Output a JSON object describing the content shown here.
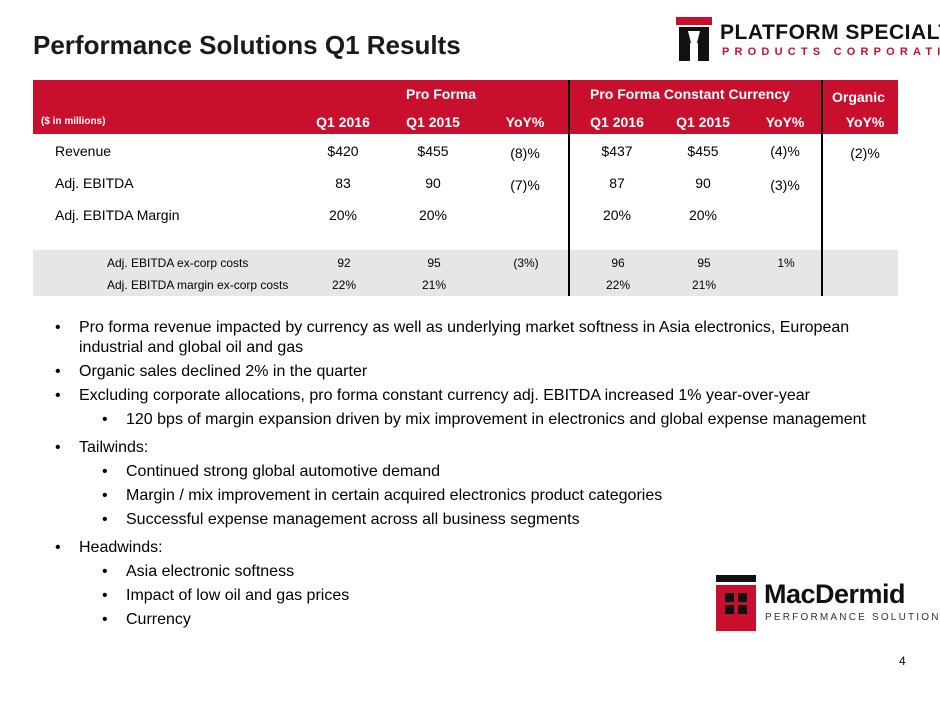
{
  "title": "Performance Solutions Q1 Results",
  "logo_top": {
    "line1": "PLATFORM SPECIALTY",
    "line2": "PRODUCTS CORPORATION",
    "color": "#c8102e"
  },
  "table": {
    "group_headers": {
      "pro_forma": "Pro Forma",
      "constant_currency": "Pro Forma Constant Currency",
      "organic": "Organic"
    },
    "unit_label": "($ in millions)",
    "columns": [
      "Q1 2016",
      "Q1 2015",
      "YoY%",
      "Q1 2016",
      "Q1 2015",
      "YoY%",
      "YoY%"
    ],
    "rows": [
      {
        "label": "Revenue",
        "values": [
          "$420",
          "$455",
          "(8)%",
          "$437",
          "$455",
          "(4)%",
          "(2)%"
        ]
      },
      {
        "label": "Adj. EBITDA",
        "values": [
          "83",
          "90",
          "(7)%",
          "87",
          "90",
          "(3)%",
          ""
        ]
      },
      {
        "label": "Adj. EBITDA Margin",
        "values": [
          "20%",
          "20%",
          "",
          "20%",
          "20%",
          "",
          ""
        ]
      }
    ],
    "sub_rows": [
      {
        "label": "Adj. EBITDA ex-corp costs",
        "values": [
          "92",
          "95",
          "(3%)",
          "96",
          "95",
          "1%",
          ""
        ]
      },
      {
        "label": "Adj. EBITDA margin ex-corp costs",
        "values": [
          "22%",
          "21%",
          "",
          "22%",
          "21%",
          "",
          ""
        ]
      }
    ],
    "header_color": "#c8102e",
    "band_color": "#e6e6e6"
  },
  "bullets": [
    {
      "level": 1,
      "text": "Pro forma revenue impacted by currency as well as underlying market softness in Asia electronics, European industrial and global oil and gas"
    },
    {
      "level": 1,
      "text": "Organic sales declined 2% in the quarter"
    },
    {
      "level": 1,
      "text": "Excluding corporate allocations, pro forma constant currency adj. EBITDA increased 1% year-over-year"
    },
    {
      "level": 2,
      "text": "120 bps of margin expansion driven by mix improvement in electronics and global expense management"
    },
    {
      "level": 1,
      "text": "Tailwinds:"
    },
    {
      "level": 2,
      "text": "Continued strong global automotive demand"
    },
    {
      "level": 2,
      "text": "Margin / mix improvement in certain acquired electronics product categories"
    },
    {
      "level": 2,
      "text": "Successful expense management across all business segments"
    },
    {
      "level": 1,
      "text": "Headwinds:"
    },
    {
      "level": 2,
      "text": "Asia electronic softness"
    },
    {
      "level": 2,
      "text": "Impact of low oil and gas prices"
    },
    {
      "level": 2,
      "text": "Currency"
    }
  ],
  "logo_bottom": {
    "name": "MacDermid",
    "sub": "PERFORMANCE SOLUTIONS"
  },
  "page_number": "4"
}
